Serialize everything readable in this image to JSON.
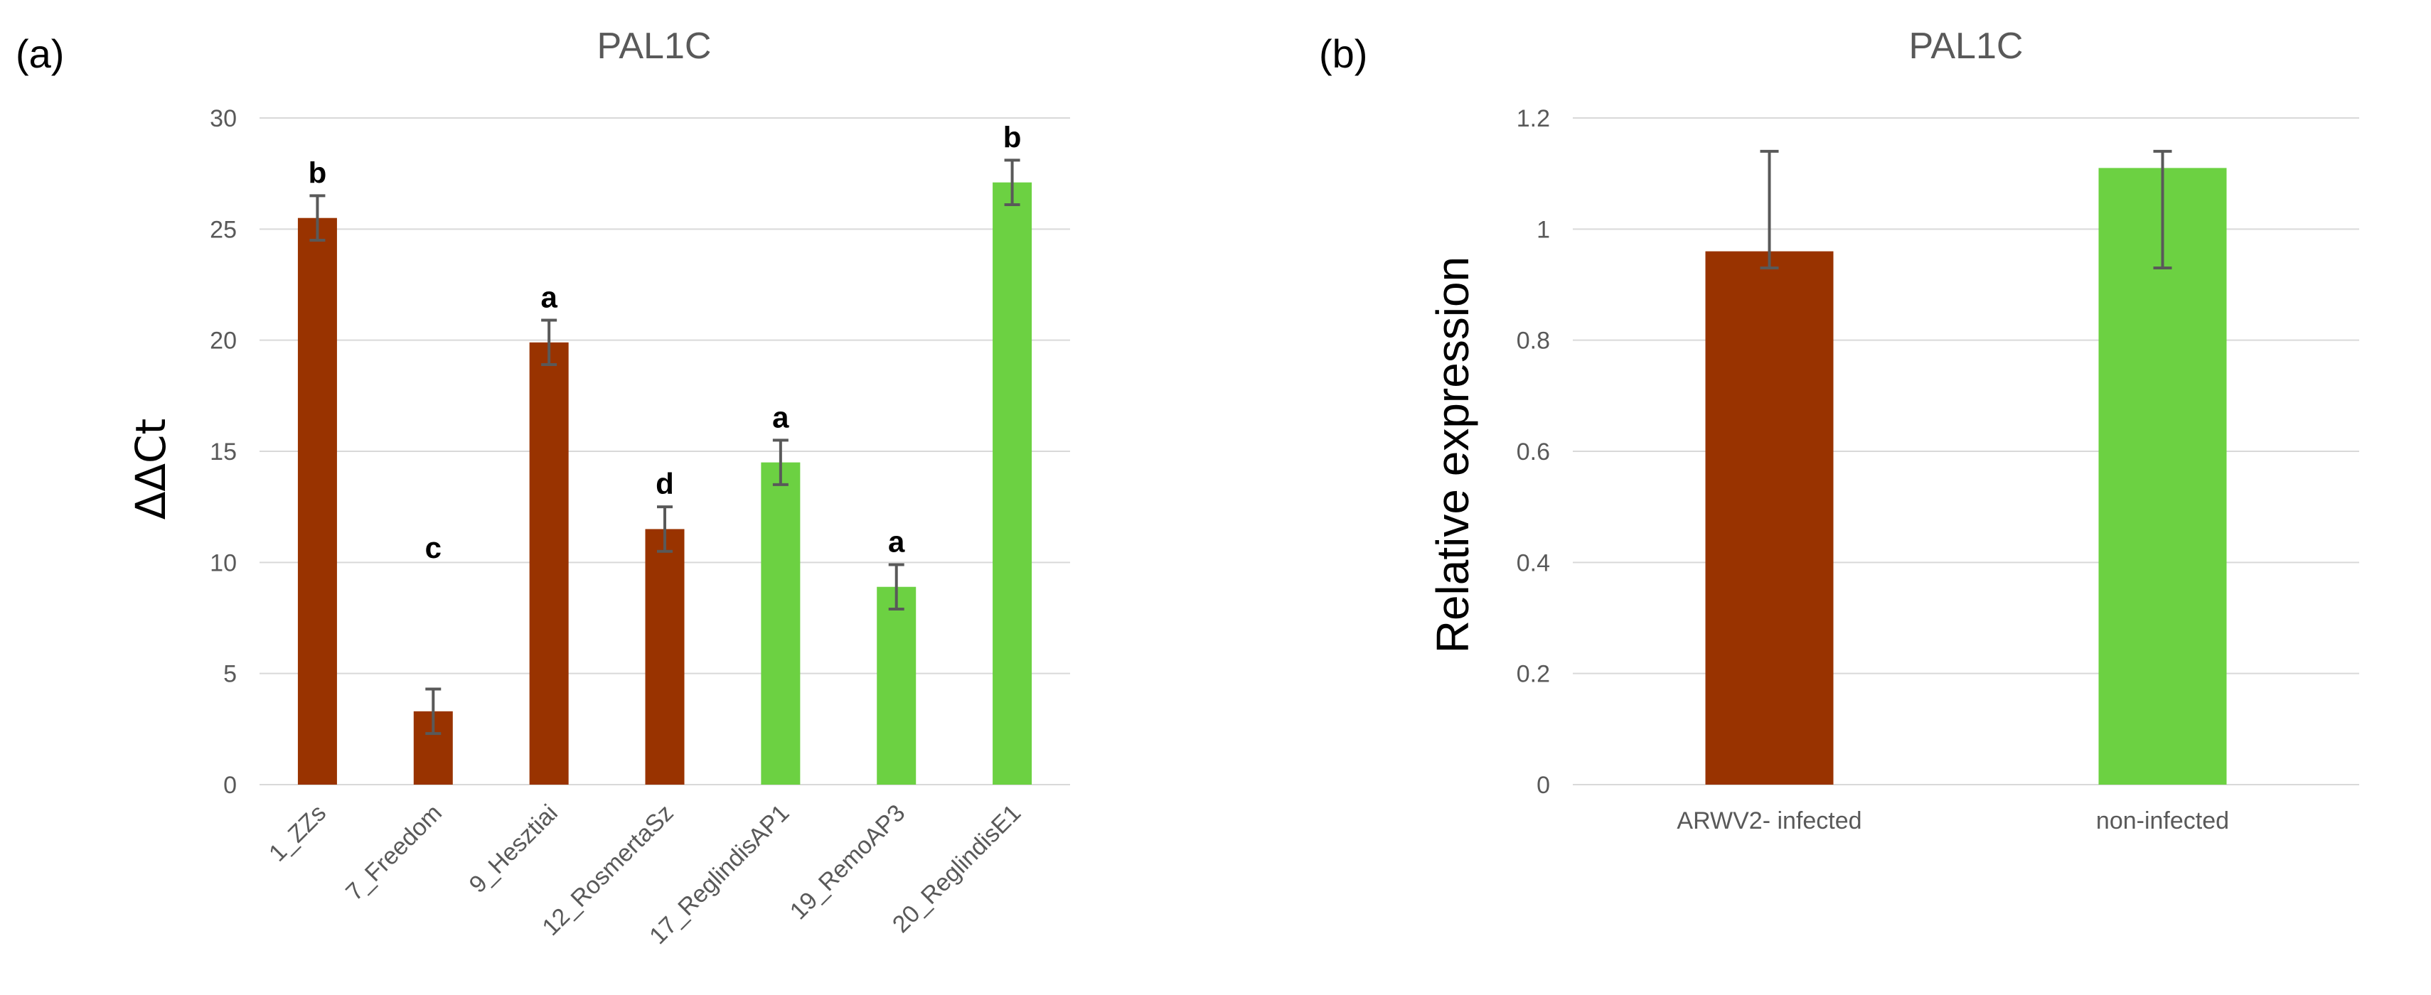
{
  "chart_data": [
    {
      "panel": "(a)",
      "type": "bar",
      "title": "PAL1C",
      "xlabel": "",
      "ylabel": "ΔΔCt",
      "ylim": [
        0,
        30
      ],
      "yticks": [
        0,
        5,
        10,
        15,
        20,
        25,
        30
      ],
      "grid": true,
      "categories": [
        "1_ZZs",
        "7_Freedom",
        "9_Hesztiai",
        "12_RosmertaSz",
        "17_ReglindisAP1",
        "19_RemoAP3",
        "20_ReglindisE1"
      ],
      "values": [
        25.5,
        3.3,
        19.9,
        11.5,
        14.5,
        8.9,
        27.1
      ],
      "errors": [
        1.0,
        1.0,
        1.0,
        1.0,
        1.0,
        1.0,
        1.0
      ],
      "bar_colors": [
        "#993300",
        "#993300",
        "#993300",
        "#993300",
        "#6cd142",
        "#6cd142",
        "#6cd142"
      ],
      "significance": [
        "b",
        "c",
        "a",
        "d",
        "a",
        "a",
        "b"
      ]
    },
    {
      "panel": "(b)",
      "type": "bar",
      "title": "PAL1C",
      "xlabel": "",
      "ylabel": "Relative expression",
      "ylim": [
        0,
        1.2
      ],
      "yticks": [
        "0",
        "0.2",
        "0.4",
        "0.6",
        "0.8",
        "1",
        "1.2"
      ],
      "grid": true,
      "categories": [
        "ARWV2- infected",
        "non-infected"
      ],
      "values": [
        0.96,
        1.11
      ],
      "error_low": [
        0.93,
        0.93
      ],
      "error_high": [
        1.14,
        1.14
      ],
      "bar_colors": [
        "#993300",
        "#6cd142"
      ]
    }
  ]
}
